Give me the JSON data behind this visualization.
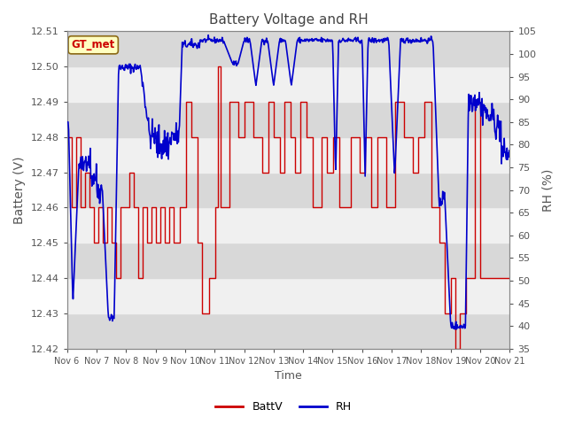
{
  "title": "Battery Voltage and RH",
  "xlabel": "Time",
  "ylabel_left": "Battery (V)",
  "ylabel_right": "RH (%)",
  "ylim_left": [
    12.42,
    12.51
  ],
  "ylim_right": [
    35,
    105
  ],
  "yticks_left": [
    12.42,
    12.43,
    12.44,
    12.45,
    12.46,
    12.47,
    12.48,
    12.49,
    12.5,
    12.51
  ],
  "yticks_right": [
    35,
    40,
    45,
    50,
    55,
    60,
    65,
    70,
    75,
    80,
    85,
    90,
    95,
    100,
    105
  ],
  "legend_label": "GT_met",
  "legend_box_color": "#ffffc0",
  "legend_box_border": "#8b6914",
  "batt_color": "#cc0000",
  "rh_color": "#0000cc",
  "title_color": "#444444",
  "axis_label_color": "#555555",
  "tick_color": "#555555",
  "band_color_dark": "#d8d8d8",
  "band_color_light": "#f0f0f0",
  "fig_bg": "#ffffff",
  "xtick_labels": [
    "Nov 6",
    "Nov 7",
    "Nov 8",
    "Nov 9",
    "Nov 10",
    "Nov 11",
    "Nov 12",
    "Nov 13",
    "Nov 14",
    "Nov 15",
    "Nov 16",
    "Nov 17",
    "Nov 18",
    "Nov 19",
    "Nov 20",
    "Nov 21"
  ],
  "num_days": 16,
  "xlim": [
    0,
    15
  ]
}
